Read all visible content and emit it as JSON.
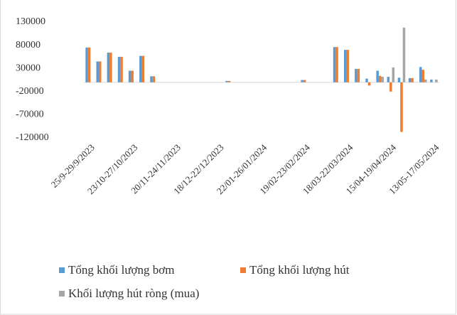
{
  "chart_data": {
    "type": "bar",
    "categories": [
      "25/9-29/9/2023",
      null,
      null,
      null,
      "23/10-27/10/2023",
      null,
      null,
      null,
      "20/11-24/11/2023",
      null,
      null,
      null,
      "18/12-22/12/2023",
      null,
      null,
      null,
      "22/01-26/01/2024",
      null,
      null,
      null,
      "19/02-23/02/2024",
      null,
      null,
      null,
      "18/03-22/03/2024",
      null,
      null,
      null,
      "15/04-19/04/2024",
      null,
      null,
      null,
      "13/05-17/05/2024"
    ],
    "series": [
      {
        "name": "Tổng khối lượng bơm",
        "color": "#5b9bd5",
        "values": [
          75000,
          45000,
          64000,
          55000,
          25000,
          57000,
          13000,
          0,
          0,
          0,
          0,
          0,
          0,
          3000,
          0,
          0,
          0,
          0,
          0,
          0,
          5000,
          0,
          0,
          76000,
          70000,
          29000,
          8000,
          25000,
          12000,
          10000,
          9000,
          33000,
          6000
        ]
      },
      {
        "name": "Tổng khối lượng hút",
        "color": "#ed7d31",
        "values": [
          75000,
          45000,
          64000,
          55000,
          25000,
          57000,
          13000,
          0,
          0,
          0,
          0,
          0,
          0,
          3000,
          0,
          0,
          0,
          0,
          0,
          0,
          5000,
          0,
          0,
          76000,
          70000,
          29000,
          -7000,
          14000,
          -20000,
          -107000,
          9000,
          27000,
          0
        ]
      },
      {
        "name": "Khối lượng hút ròng (mua)",
        "color": "#a5a5a5",
        "values": [
          0,
          0,
          0,
          0,
          0,
          0,
          0,
          0,
          0,
          0,
          0,
          0,
          0,
          0,
          0,
          0,
          0,
          0,
          0,
          0,
          0,
          0,
          0,
          0,
          0,
          0,
          0,
          12000,
          32000,
          118000,
          0,
          6000,
          6000
        ]
      }
    ],
    "ylim": [
      -120000,
      130000
    ],
    "yticks": [
      -120000,
      -70000,
      -20000,
      30000,
      80000,
      130000
    ],
    "grid": false,
    "legend": "bottom"
  }
}
